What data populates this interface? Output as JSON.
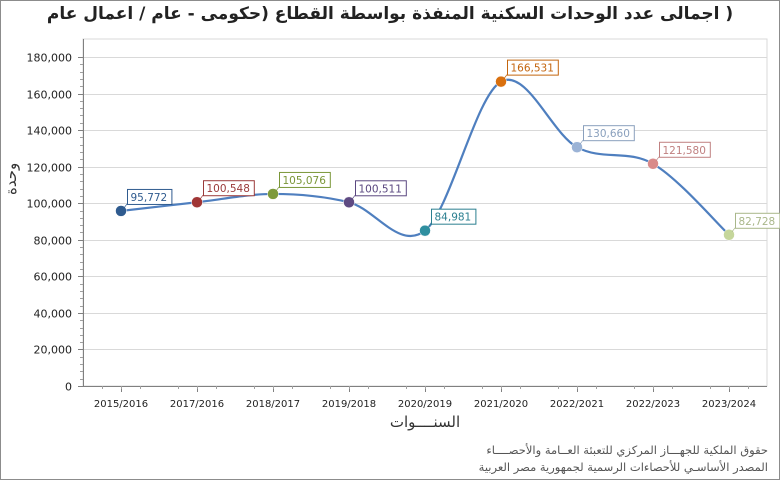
{
  "title": "( اجمالى عدد الوحدات السكنية المنفذة بواسطة القطاع (حكومى - عام / اعمال عام",
  "axes": {
    "x_title": "السنــــوات",
    "y_title": "وحدة"
  },
  "footer": {
    "line1": "حقوق الملكية للجهـــاز المركزي للتعبئة العــامة والأحصــــاء",
    "line2": "المصدر الأساسـي للأحصاءات الرسمية لجمهورية مصر العربية"
  },
  "chart_data": {
    "type": "line",
    "title": "( اجمالى عدد الوحدات السكنية المنفذة بواسطة القطاع (حكومى - عام / اعمال عام",
    "xlabel": "السنــــوات",
    "ylabel": "وحدة",
    "categories": [
      "2015/2016",
      "2017/2016",
      "2018/2017",
      "2019/2018",
      "2020/2019",
      "2021/2020",
      "2022/2021",
      "2022/2023",
      "2023/2024"
    ],
    "values": [
      95772,
      100548,
      105076,
      100511,
      84981,
      166531,
      130660,
      121580,
      82728
    ],
    "value_labels": [
      "95,772",
      "100,548",
      "105,076",
      "100,511",
      "84,981",
      "166,531",
      "130,660",
      "121,580",
      "82,728"
    ],
    "point_colors": [
      "#2f5b8f",
      "#a03535",
      "#7d9a3c",
      "#5e4a82",
      "#2f8fa0",
      "#d9700f",
      "#9bb3d6",
      "#d98a8a",
      "#c5d69b"
    ],
    "label_colors": [
      "#2f5b8f",
      "#9b3a3a",
      "#7a9637",
      "#5a4780",
      "#2b7f90",
      "#c4650e",
      "#8aa0bd",
      "#c08080",
      "#a9b78a"
    ],
    "line_color": "#4f7fbf",
    "ylim": [
      0,
      180000
    ],
    "yticks": [
      "0",
      "20,000",
      "40,000",
      "60,000",
      "80,000",
      "100,000",
      "120,000",
      "140,000",
      "160,000",
      "180,000"
    ],
    "grid": true,
    "smooth": true,
    "legend": "none"
  }
}
